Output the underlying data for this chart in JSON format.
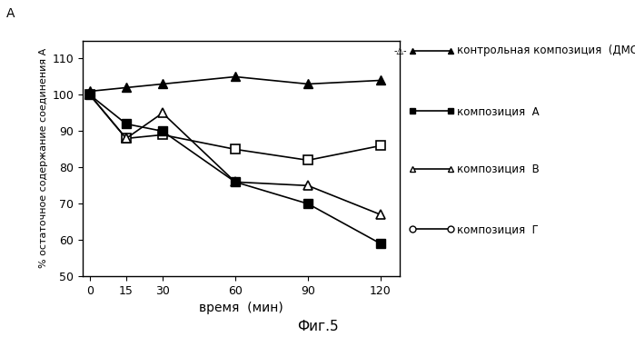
{
  "x": [
    0,
    15,
    30,
    60,
    90,
    120
  ],
  "control_dmso": [
    101,
    102,
    103,
    105,
    103,
    104
  ],
  "composition_A": [
    100,
    92,
    90,
    76,
    70,
    59
  ],
  "composition_B": [
    100,
    88,
    95,
    76,
    75,
    67
  ],
  "composition_F": [
    100,
    88,
    89,
    85,
    82,
    86
  ],
  "xlabel": "время  (мин)",
  "ylabel_line1": "% остаточное содержание соединения A",
  "legend_control": "контрольная композиция  (ДМСО)",
  "legend_A": "композиция  A",
  "legend_B": "композиция  B",
  "legend_F": "композиция  Г",
  "ylim": [
    50,
    115
  ],
  "yticks": [
    50,
    60,
    70,
    80,
    90,
    100,
    110
  ],
  "xticks": [
    0,
    15,
    30,
    60,
    90,
    120
  ],
  "fig_label": "Фиг.5",
  "line_color": "#000000",
  "bg_color": "#ffffff"
}
